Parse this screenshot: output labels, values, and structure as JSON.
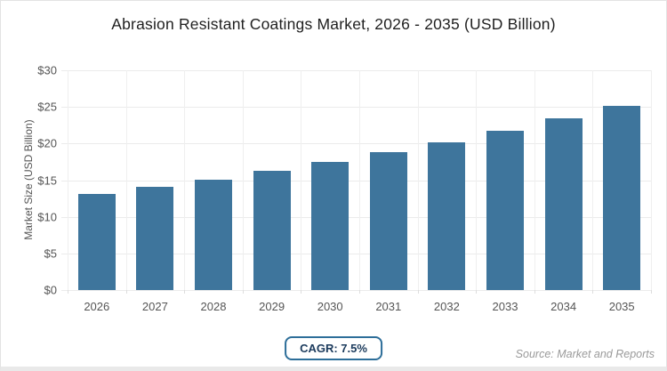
{
  "card": {
    "title": "Abrasion Resistant Coatings Market, 2026 - 2035 (USD Billion)"
  },
  "chart_data": {
    "type": "bar",
    "title": "Abrasion Resistant Coatings Market, 2026 - 2035 (USD Billion)",
    "categories": [
      "2026",
      "2027",
      "2028",
      "2029",
      "2030",
      "2031",
      "2032",
      "2033",
      "2034",
      "2035"
    ],
    "values": [
      13.1,
      14.1,
      15.1,
      16.3,
      17.5,
      18.8,
      20.2,
      21.7,
      23.4,
      25.1
    ],
    "xlabel": "",
    "ylabel": "Market Size (USD Billion)",
    "ylim": [
      0,
      30
    ],
    "yticks": [
      0,
      5,
      10,
      15,
      20,
      25,
      30
    ],
    "ytick_labels": [
      "$0",
      "$5",
      "$10",
      "$15",
      "$20",
      "$25",
      "$30"
    ],
    "grid": true,
    "legend": false,
    "bar_color": "#3e759c"
  },
  "footer": {
    "cagr_label": "CAGR: 7.5%",
    "source": "Source: Market and Reports"
  },
  "colors": {
    "bar": "#3e759c",
    "grid_h": "#ebebeb",
    "grid_v": "#efefef",
    "badge_border": "#2d6e99",
    "badge_text": "#1b3a5c",
    "axis_text": "#555555",
    "title_text": "#1f1f1f",
    "source_text": "#9a9a9a"
  }
}
